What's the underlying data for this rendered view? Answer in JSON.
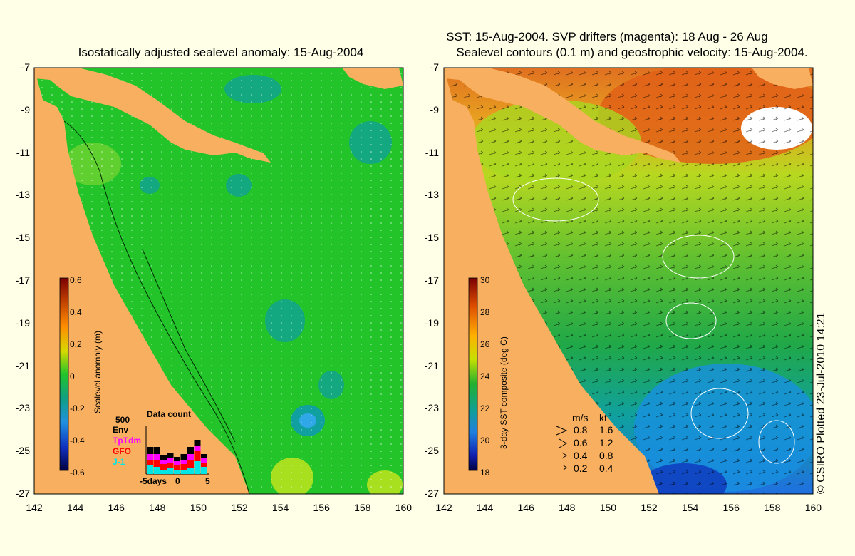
{
  "left_panel": {
    "title": "Isostatically adjusted sealevel anomaly: 15-Aug-2004",
    "colorbar_label": "Sealevel anomaly (m)",
    "colorbar_ticks": [
      "0.6",
      "0.4",
      "0.2",
      "0",
      "-0.2",
      "-0.4",
      "-0.6"
    ],
    "inset": {
      "title": "Data count",
      "ytick": "500",
      "missions": [
        "Env",
        "TpTdm",
        "GFO",
        "J-1"
      ],
      "mission_colors": [
        "#000000",
        "#ff00ff",
        "#ff0000",
        "#00e5e5"
      ],
      "xlabel_left": "-5days",
      "xlabel_mid": "0",
      "xlabel_right": "5"
    }
  },
  "right_panel": {
    "title_line1": "SST: 15-Aug-2004. SVP drifters (magenta): 18 Aug - 26 Aug",
    "title_line2": "Sealevel contours (0.1 m) and geostrophic velocity: 15-Aug-2004.",
    "colorbar_label": "3-day SST composite (deg C)",
    "colorbar_ticks": [
      "30",
      "28",
      "26",
      "24",
      "22",
      "20",
      "18"
    ],
    "speed_legend": {
      "header_ms": "m/s",
      "header_kt": "kt",
      "rows": [
        {
          "ms": "0.8",
          "kt": "1.6"
        },
        {
          "ms": "0.6",
          "kt": "1.2"
        },
        {
          "ms": "0.4",
          "kt": "0.8"
        },
        {
          "ms": "0.2",
          "kt": "0.4"
        }
      ]
    }
  },
  "axes": {
    "lat_ticks": [
      "-7",
      "-9",
      "-11",
      "-13",
      "-15",
      "-17",
      "-19",
      "-21",
      "-23",
      "-25",
      "-27"
    ],
    "lon_ticks": [
      "142",
      "144",
      "146",
      "148",
      "150",
      "152",
      "154",
      "156",
      "158",
      "160"
    ]
  },
  "copyright": "© CSIRO Plotted 23-Jul-2010 14:21",
  "colors": {
    "land": "#f8b060",
    "ocean_sla": "#22c42a",
    "background": "#ffffe8"
  }
}
